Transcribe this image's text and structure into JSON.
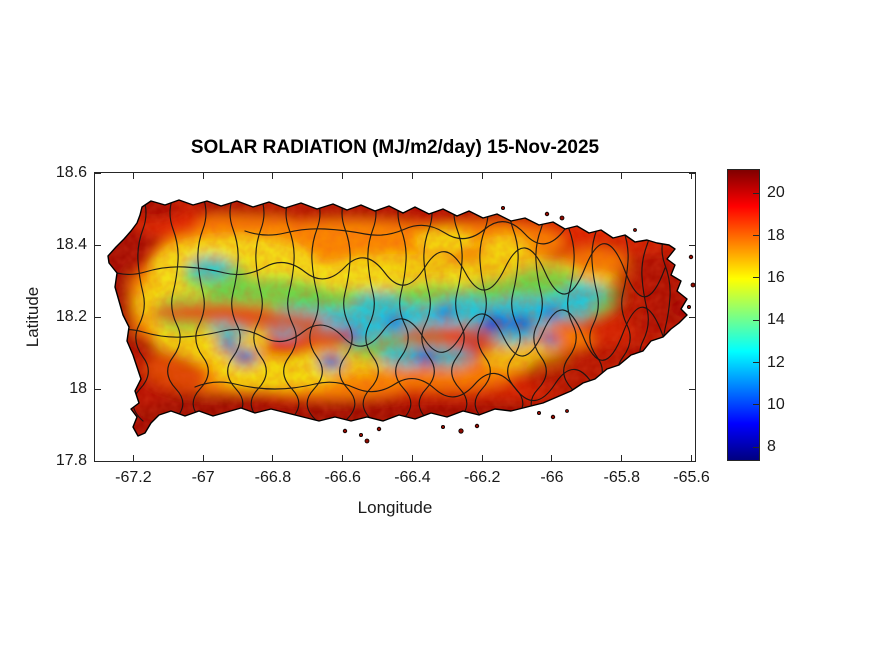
{
  "title": "SOLAR RADIATION (MJ/m2/day) 15-Nov-2025",
  "axes": {
    "xlabel": "Longitude",
    "ylabel": "Latitude",
    "x_tick_labels": [
      "-67.2",
      "-67",
      "-66.8",
      "-66.6",
      "-66.4",
      "-66.2",
      "-66",
      "-65.8",
      "-65.6"
    ],
    "x_tick_values": [
      -67.2,
      -67,
      -66.8,
      -66.6,
      -66.4,
      -66.2,
      -66,
      -65.8,
      -65.6
    ],
    "y_tick_labels": [
      "18.6",
      "18.4",
      "18.2",
      "18",
      "17.8"
    ],
    "y_tick_values": [
      18.6,
      18.4,
      18.2,
      18,
      17.8
    ],
    "xlim": [
      -67.31,
      -65.59
    ],
    "ylim": [
      17.8,
      18.6
    ]
  },
  "colorbar": {
    "tick_labels": [
      "20",
      "18",
      "16",
      "14",
      "12",
      "10",
      "8"
    ],
    "tick_values": [
      20,
      18,
      16,
      14,
      12,
      10,
      8
    ],
    "range": [
      7.4,
      21.1
    ],
    "colormap": "jet",
    "position": "right"
  },
  "chart_data": {
    "type": "heatmap",
    "title": "SOLAR RADIATION (MJ/m2/day) 15-Nov-2025",
    "xlabel": "Longitude",
    "ylabel": "Latitude",
    "region": "Puerto Rico with municipal boundaries overlaid",
    "units": "MJ/m2/day",
    "xlim": [
      -67.31,
      -65.59
    ],
    "ylim": [
      17.8,
      18.6
    ],
    "x_ticks": [
      -67.2,
      -67,
      -66.8,
      -66.6,
      -66.4,
      -66.2,
      -66,
      -65.8,
      -65.6
    ],
    "y_ticks": [
      17.8,
      18,
      18.2,
      18.4,
      18.6
    ],
    "colorbar": {
      "ticks": [
        8,
        10,
        12,
        14,
        16,
        18,
        20
      ],
      "range": [
        7.4,
        21.1
      ],
      "colormap": "jet",
      "position": "right"
    },
    "grid": false,
    "legend": "colorbar",
    "values_summary": [
      {
        "area": "eastern third of island",
        "approx_value_MJ_m2_day": "19-21"
      },
      {
        "area": "north and south coastal strips",
        "approx_value_MJ_m2_day": "18-21"
      },
      {
        "area": "north-central band",
        "approx_value_MJ_m2_day": "16-18"
      },
      {
        "area": "northwest interior",
        "approx_value_MJ_m2_day": "14-17"
      },
      {
        "area": "central mountain ridge (west-central cordillera)",
        "approx_value_MJ_m2_day": "8-14"
      }
    ]
  }
}
